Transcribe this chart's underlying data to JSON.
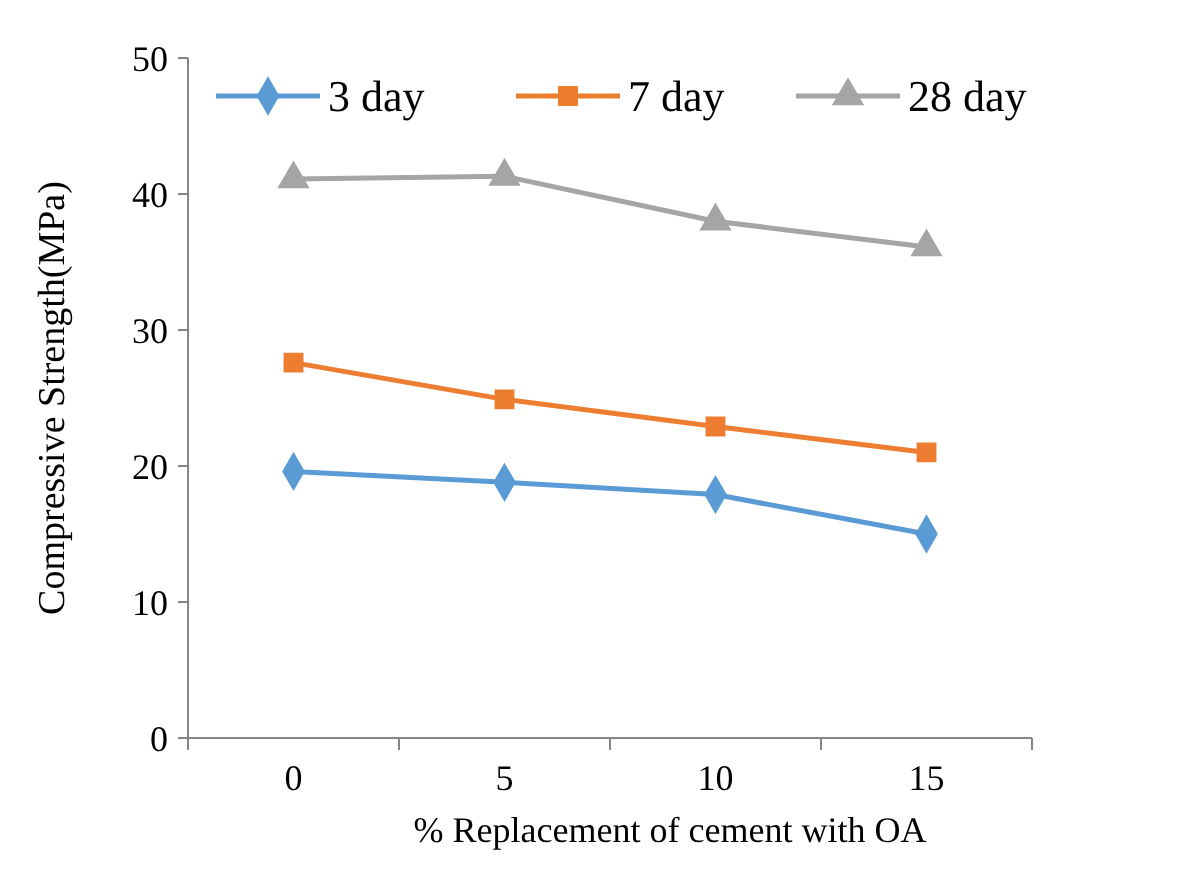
{
  "chart_data": {
    "type": "line",
    "xlabel": "% Replacement  of cement with OA",
    "ylabel": "Compressive Strength(MPa)",
    "categories": [
      "0",
      "5",
      "10",
      "15"
    ],
    "series": [
      {
        "name": "3 day",
        "color": "#5b9bd5",
        "marker": "diamond",
        "values": [
          19.6,
          18.8,
          17.9,
          15.0
        ]
      },
      {
        "name": "7 day",
        "color": "#ed7d31",
        "marker": "square",
        "values": [
          27.6,
          24.9,
          22.9,
          21.0
        ]
      },
      {
        "name": "28 day",
        "color": "#a5a5a5",
        "marker": "triangle",
        "values": [
          41.1,
          41.3,
          38.0,
          36.1
        ]
      }
    ],
    "ylim": [
      0,
      50
    ],
    "yticks": [
      0,
      10,
      20,
      30,
      40,
      50
    ],
    "grid": false,
    "legend": "top"
  }
}
